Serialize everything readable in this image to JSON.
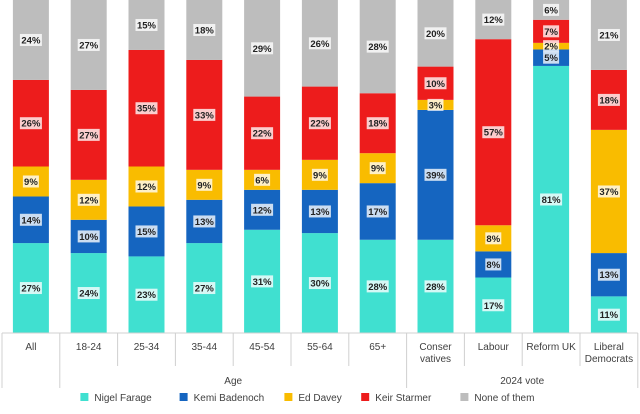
{
  "chart_data": {
    "type": "bar",
    "stacked": true,
    "percent_scale": true,
    "categories": [
      "All",
      "18-24",
      "25-34",
      "35-44",
      "45-54",
      "55-64",
      "65+",
      "Conser vatives",
      "Labour",
      "Reform UK",
      "Liberal Democrats"
    ],
    "category_lines": [
      [
        "All"
      ],
      [
        "18-24"
      ],
      [
        "25-34"
      ],
      [
        "35-44"
      ],
      [
        "45-54"
      ],
      [
        "55-64"
      ],
      [
        "65+"
      ],
      [
        "Conser",
        "vatives"
      ],
      [
        "Labour"
      ],
      [
        "Reform UK"
      ],
      [
        "Liberal",
        "Democrats"
      ]
    ],
    "groups": [
      {
        "label": "Age",
        "categories": [
          "18-24",
          "25-34",
          "35-44",
          "45-54",
          "55-64",
          "65+"
        ]
      },
      {
        "label": "2024 vote",
        "categories": [
          "Conser vatives",
          "Labour",
          "Reform UK",
          "Liberal Democrats"
        ]
      }
    ],
    "series": [
      {
        "name": "Nigel Farage",
        "color": "#40e0d0",
        "values": [
          27,
          24,
          23,
          27,
          31,
          30,
          28,
          28,
          17,
          81,
          11
        ]
      },
      {
        "name": "Kemi Badenoch",
        "color": "#1565c0",
        "values": [
          14,
          10,
          15,
          13,
          12,
          13,
          17,
          39,
          8,
          5,
          13
        ]
      },
      {
        "name": "Ed Davey",
        "color": "#f9bc00",
        "values": [
          9,
          12,
          12,
          9,
          6,
          9,
          9,
          3,
          8,
          2,
          37
        ]
      },
      {
        "name": "Keir Starmer",
        "color": "#ed1c1c",
        "values": [
          26,
          27,
          35,
          33,
          22,
          22,
          18,
          10,
          57,
          7,
          18
        ]
      },
      {
        "name": "None of them",
        "color": "#bdbdbd",
        "values": [
          24,
          27,
          15,
          18,
          29,
          26,
          28,
          20,
          12,
          6,
          21
        ]
      }
    ],
    "label_suffix": "%",
    "ylim": [
      0,
      100
    ],
    "legend_position": "bottom"
  }
}
